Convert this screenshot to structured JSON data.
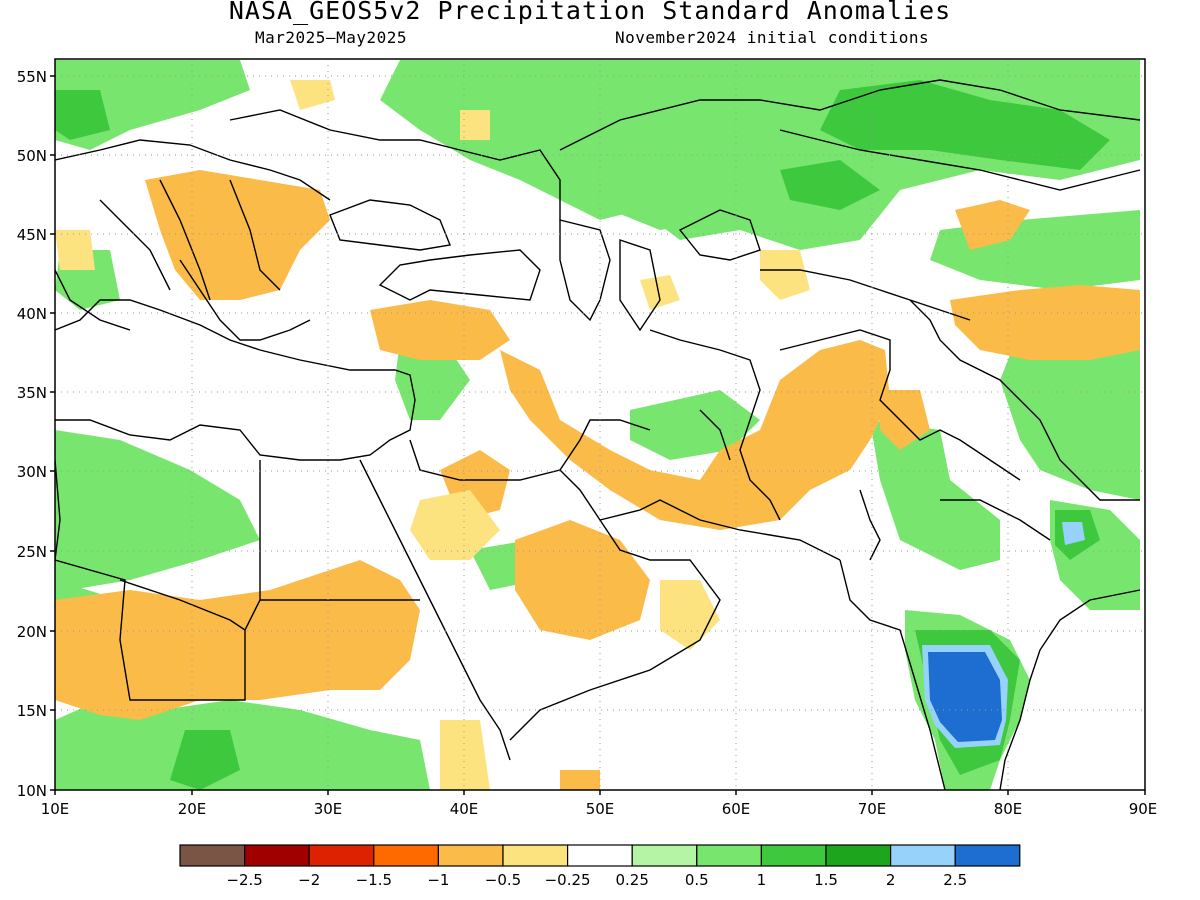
{
  "title": "NASA_GEOS5v2 Precipitation Standard Anomalies",
  "subtitle_left": "Mar2025–May2025",
  "subtitle_right": "November2024 initial conditions",
  "lat_labels": [
    "55N",
    "50N",
    "45N",
    "40N",
    "35N",
    "30N",
    "25N",
    "20N",
    "15N",
    "10N"
  ],
  "lon_labels": [
    "10E",
    "20E",
    "30E",
    "40E",
    "50E",
    "60E",
    "70E",
    "80E",
    "90E"
  ],
  "colorbar": {
    "colors": [
      "#7a5545",
      "#a00000",
      "#dc2200",
      "#ff6a00",
      "#fbbb48",
      "#fde37f",
      "#ffffff",
      "#b4f5a5",
      "#78e66e",
      "#3ec83e",
      "#1ea51e",
      "#96d2fa",
      "#1e6ed2"
    ],
    "labels": [
      "−2.5",
      "−2",
      "−1.5",
      "−1",
      "−0.5",
      "−0.25",
      "0.25",
      "0.5",
      "1",
      "1.5",
      "2",
      "2.5"
    ]
  }
}
